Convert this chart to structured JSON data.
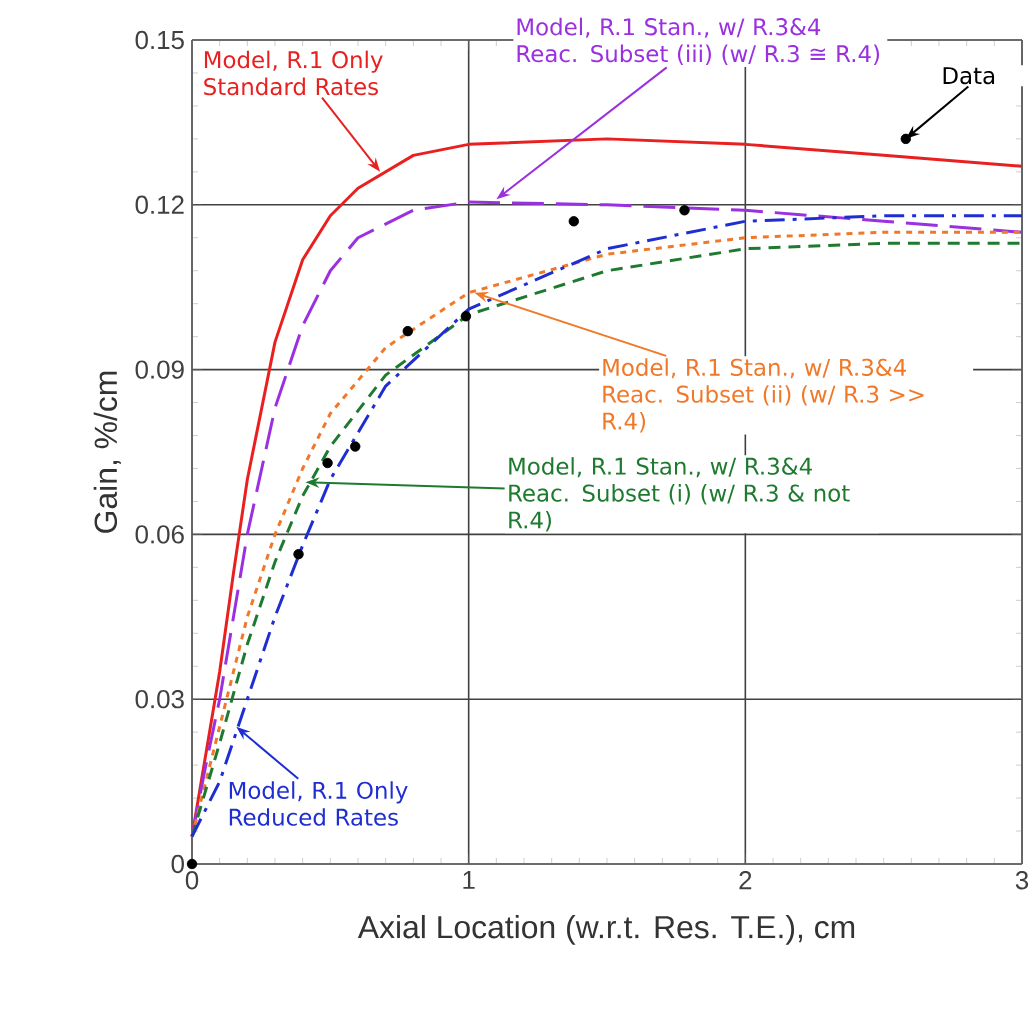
{
  "chart_data": {
    "type": "line",
    "xlabel": "Axial Location (w.r.t. Res. T.E.), cm",
    "ylabel": "Gain, %/cm",
    "xlim": [
      0,
      3
    ],
    "ylim": [
      0,
      0.15
    ],
    "xticks": [
      0,
      1,
      2,
      3
    ],
    "yticks": [
      0,
      0.03,
      0.06,
      0.09,
      0.12,
      0.15
    ],
    "grid": true,
    "marker": "none",
    "series": [
      {
        "color": "#e8201f",
        "line_style": "solid",
        "x": [
          0,
          0.05,
          0.1,
          0.15,
          0.2,
          0.3,
          0.4,
          0.5,
          0.6,
          0.8,
          1.0,
          1.5,
          2.0,
          2.5,
          3.0
        ],
        "values": [
          0.005,
          0.02,
          0.035,
          0.053,
          0.07,
          0.095,
          0.11,
          0.118,
          0.123,
          0.129,
          0.131,
          0.132,
          0.131,
          0.129,
          0.127
        ]
      },
      {
        "color": "#9b30e0",
        "line_style": "longdashed",
        "x": [
          0,
          0.05,
          0.1,
          0.2,
          0.3,
          0.4,
          0.5,
          0.6,
          0.8,
          1.0,
          1.5,
          2.0,
          2.5,
          3.0
        ],
        "values": [
          0.005,
          0.018,
          0.03,
          0.06,
          0.083,
          0.098,
          0.108,
          0.114,
          0.119,
          0.1205,
          0.12,
          0.119,
          0.117,
          0.115
        ]
      },
      {
        "color": "#f07828",
        "line_style": "dotted",
        "x": [
          0,
          0.1,
          0.2,
          0.3,
          0.4,
          0.5,
          0.7,
          1.0,
          1.5,
          2.0,
          2.5,
          3.0
        ],
        "values": [
          0.005,
          0.025,
          0.045,
          0.06,
          0.072,
          0.082,
          0.094,
          0.104,
          0.111,
          0.114,
          0.115,
          0.115
        ]
      },
      {
        "color": "#1e7a2e",
        "line_style": "dashed",
        "x": [
          0,
          0.1,
          0.2,
          0.3,
          0.4,
          0.5,
          0.7,
          1.0,
          1.5,
          2.0,
          2.5,
          3.0
        ],
        "values": [
          0.005,
          0.022,
          0.04,
          0.055,
          0.067,
          0.076,
          0.089,
          0.1,
          0.108,
          0.112,
          0.113,
          0.113
        ]
      },
      {
        "color": "#1f2ed0",
        "line_style": "dashdot",
        "x": [
          0,
          0.1,
          0.2,
          0.3,
          0.4,
          0.5,
          0.7,
          1.0,
          1.5,
          2.0,
          2.5,
          3.0
        ],
        "values": [
          0.005,
          0.015,
          0.03,
          0.045,
          0.058,
          0.07,
          0.087,
          0.101,
          0.112,
          0.117,
          0.118,
          0.118
        ]
      },
      {
        "type": "scatter",
        "color": "#000000",
        "marker": "circle",
        "x": [
          0,
          0.385,
          0.49,
          0.59,
          0.78,
          0.99,
          1.38,
          1.78,
          2.58
        ],
        "values": [
          0,
          0.0564,
          0.073,
          0.076,
          0.097,
          0.0997,
          0.117,
          0.119,
          0.132
        ]
      }
    ],
    "annotations": [
      {
        "text": "Model, R.1 Only Standard Rates",
        "x": 0.68,
        "y": 0.126
      },
      {
        "text": "Model, R.1 Stan., w/ R.3&4 Reac. Subset (iii) (w/ R.3 ≅ R.4)",
        "x": 1.1,
        "y": 0.121
      },
      {
        "text": "Data",
        "x": 2.58,
        "y": 0.132
      },
      {
        "text": "Model, R.1 Stan., w/ R.3&4 Reac. Subset (ii) (w/ R.3 >> R.4)",
        "x": 1.02,
        "y": 0.104
      },
      {
        "text": "Model, R.1 Stan., w/ R.3&4 Reac. Subset (i) (w/ R.3 & not R.4)",
        "x": 0.41,
        "y": 0.0695
      },
      {
        "text": "Model, R.1 Only Reduced Rates",
        "x": 0.16,
        "y": 0.025
      }
    ]
  }
}
